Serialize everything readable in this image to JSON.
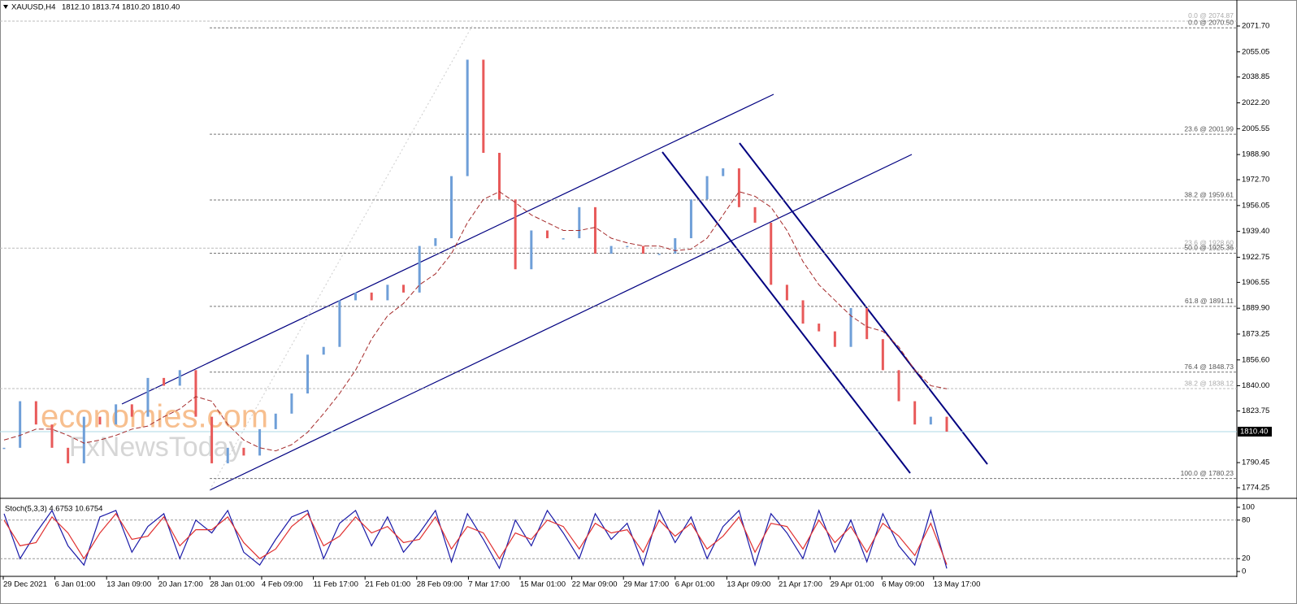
{
  "chart_data": {
    "type": "candle-line",
    "symbol": "XAUUSD,H4",
    "ohlc_text": "1812.10 1813.74 1810.20 1810.40",
    "watermark": [
      "economies.com",
      "FxNewsToday"
    ],
    "ylim": [
      1767.97,
      2080.6
    ],
    "yticks": [
      {
        "value": 2071.7,
        "label": "2071.70"
      },
      {
        "value": 2055.05,
        "label": "2055.05"
      },
      {
        "value": 2038.85,
        "label": "2038.85"
      },
      {
        "value": 2022.2,
        "label": "2022.20"
      },
      {
        "value": 2005.55,
        "label": "2005.55"
      },
      {
        "value": 1988.9,
        "label": "1988.90"
      },
      {
        "value": 1972.7,
        "label": "1972.70"
      },
      {
        "value": 1956.05,
        "label": "1956.05"
      },
      {
        "value": 1939.4,
        "label": "1939.40"
      },
      {
        "value": 1922.75,
        "label": "1922.75"
      },
      {
        "value": 1906.55,
        "label": "1906.55"
      },
      {
        "value": 1889.9,
        "label": "1889.90"
      },
      {
        "value": 1873.25,
        "label": "1873.25"
      },
      {
        "value": 1856.6,
        "label": "1856.60"
      },
      {
        "value": 1840.0,
        "label": "1840.00"
      },
      {
        "value": 1823.75,
        "label": "1823.75"
      },
      {
        "value": 1790.45,
        "label": "1790.45"
      },
      {
        "value": 1774.25,
        "label": "1774.25"
      }
    ],
    "last": {
      "value": 1810.4,
      "label": "1810.40"
    },
    "fib_levels": [
      {
        "value": 2074.87,
        "label": "0.0 @ 2074.87",
        "faint": true
      },
      {
        "value": 2070.5,
        "label": "0.0 @ 2070.50",
        "faint": false
      },
      {
        "value": 2001.99,
        "label": "23.6 @ 2001.99",
        "faint": false
      },
      {
        "value": 1959.61,
        "label": "38.2 @ 1959.61",
        "faint": false
      },
      {
        "value": 1928.6,
        "label": "23.6 @ 1928.60",
        "faint": true
      },
      {
        "value": 1925.36,
        "label": "50.0 @ 1925.36",
        "faint": false
      },
      {
        "value": 1891.11,
        "label": "61.8 @ 1891.11",
        "faint": false
      },
      {
        "value": 1848.73,
        "label": "76.4 @ 1848.73",
        "faint": false
      },
      {
        "value": 1838.12,
        "label": "38.2 @ 1838.12",
        "faint": true
      },
      {
        "value": 1780.23,
        "label": "100.0 @ 1780.23",
        "faint": false
      }
    ],
    "up_color": "#6f9fd8",
    "down_color": "#e85a5a",
    "series": [
      {
        "name": "close",
        "values": [
          1800,
          1830,
          1815,
          1800,
          1790,
          1820,
          1815,
          1828,
          1820,
          1845,
          1840,
          1850,
          1820,
          1790,
          1800,
          1795,
          1812,
          1822,
          1835,
          1860,
          1865,
          1895,
          1900,
          1895,
          1905,
          1900,
          1930,
          1935,
          1975,
          2050,
          1990,
          1960,
          1915,
          1940,
          1935,
          1935,
          1955,
          1925,
          1930,
          1930,
          1925,
          1925,
          1935,
          1960,
          1975,
          1980,
          1955,
          1945,
          1905,
          1895,
          1880,
          1875,
          1865,
          1890,
          1870,
          1850,
          1830,
          1815,
          1820,
          1810.4
        ]
      },
      {
        "name": "ma",
        "color": "#a52a2a",
        "values": [
          1805,
          1808,
          1812,
          1812,
          1808,
          1803,
          1805,
          1808,
          1812,
          1814,
          1820,
          1825,
          1833,
          1830,
          1815,
          1805,
          1800,
          1798,
          1802,
          1810,
          1822,
          1835,
          1850,
          1870,
          1885,
          1893,
          1905,
          1912,
          1925,
          1945,
          1960,
          1965,
          1958,
          1950,
          1945,
          1940,
          1940,
          1942,
          1935,
          1932,
          1930,
          1930,
          1927,
          1928,
          1935,
          1950,
          1965,
          1962,
          1955,
          1940,
          1920,
          1905,
          1895,
          1885,
          1878,
          1875,
          1865,
          1850,
          1840,
          1838
        ]
      }
    ],
    "time_labels": [
      "29 Dec 2021",
      "6 Jan 01:00",
      "13 Jan 09:00",
      "20 Jan 17:00",
      "28 Jan 01:00",
      "4 Feb 09:00",
      "11 Feb 17:00",
      "21 Feb 01:00",
      "28 Feb 09:00",
      "7 Mar 17:00",
      "15 Mar 01:00",
      "22 Mar 09:00",
      "29 Mar 17:00",
      "6 Apr 01:00",
      "13 Apr 09:00",
      "21 Apr 17:00",
      "29 Apr 01:00",
      "6 May 09:00",
      "13 May 17:00"
    ],
    "stoch": {
      "title": "Stoch(5,3,3) 4.6753 10.6754",
      "ylim": [
        0,
        100
      ],
      "yticks": [
        0,
        20,
        80,
        100
      ],
      "levels": [
        20,
        80
      ],
      "series": [
        {
          "name": "main",
          "color": "#1a1aa8",
          "values": [
            90,
            20,
            60,
            95,
            40,
            10,
            85,
            95,
            30,
            70,
            90,
            20,
            80,
            60,
            95,
            30,
            10,
            50,
            85,
            95,
            20,
            75,
            95,
            40,
            85,
            30,
            60,
            95,
            15,
            90,
            50,
            5,
            80,
            40,
            95,
            60,
            20,
            90,
            50,
            75,
            10,
            95,
            45,
            85,
            20,
            70,
            95,
            10,
            90,
            60,
            20,
            95,
            30,
            80,
            15,
            90,
            40,
            10,
            95,
            4.6753
          ]
        },
        {
          "name": "signal",
          "color": "#e03030",
          "values": [
            80,
            40,
            45,
            85,
            60,
            20,
            60,
            90,
            50,
            55,
            85,
            40,
            65,
            65,
            85,
            45,
            20,
            35,
            70,
            90,
            40,
            55,
            85,
            60,
            70,
            45,
            50,
            85,
            35,
            70,
            60,
            20,
            60,
            50,
            80,
            70,
            35,
            75,
            60,
            65,
            30,
            80,
            55,
            75,
            35,
            55,
            85,
            30,
            75,
            70,
            35,
            80,
            45,
            70,
            30,
            75,
            55,
            25,
            75,
            10.6754
          ]
        }
      ]
    }
  }
}
